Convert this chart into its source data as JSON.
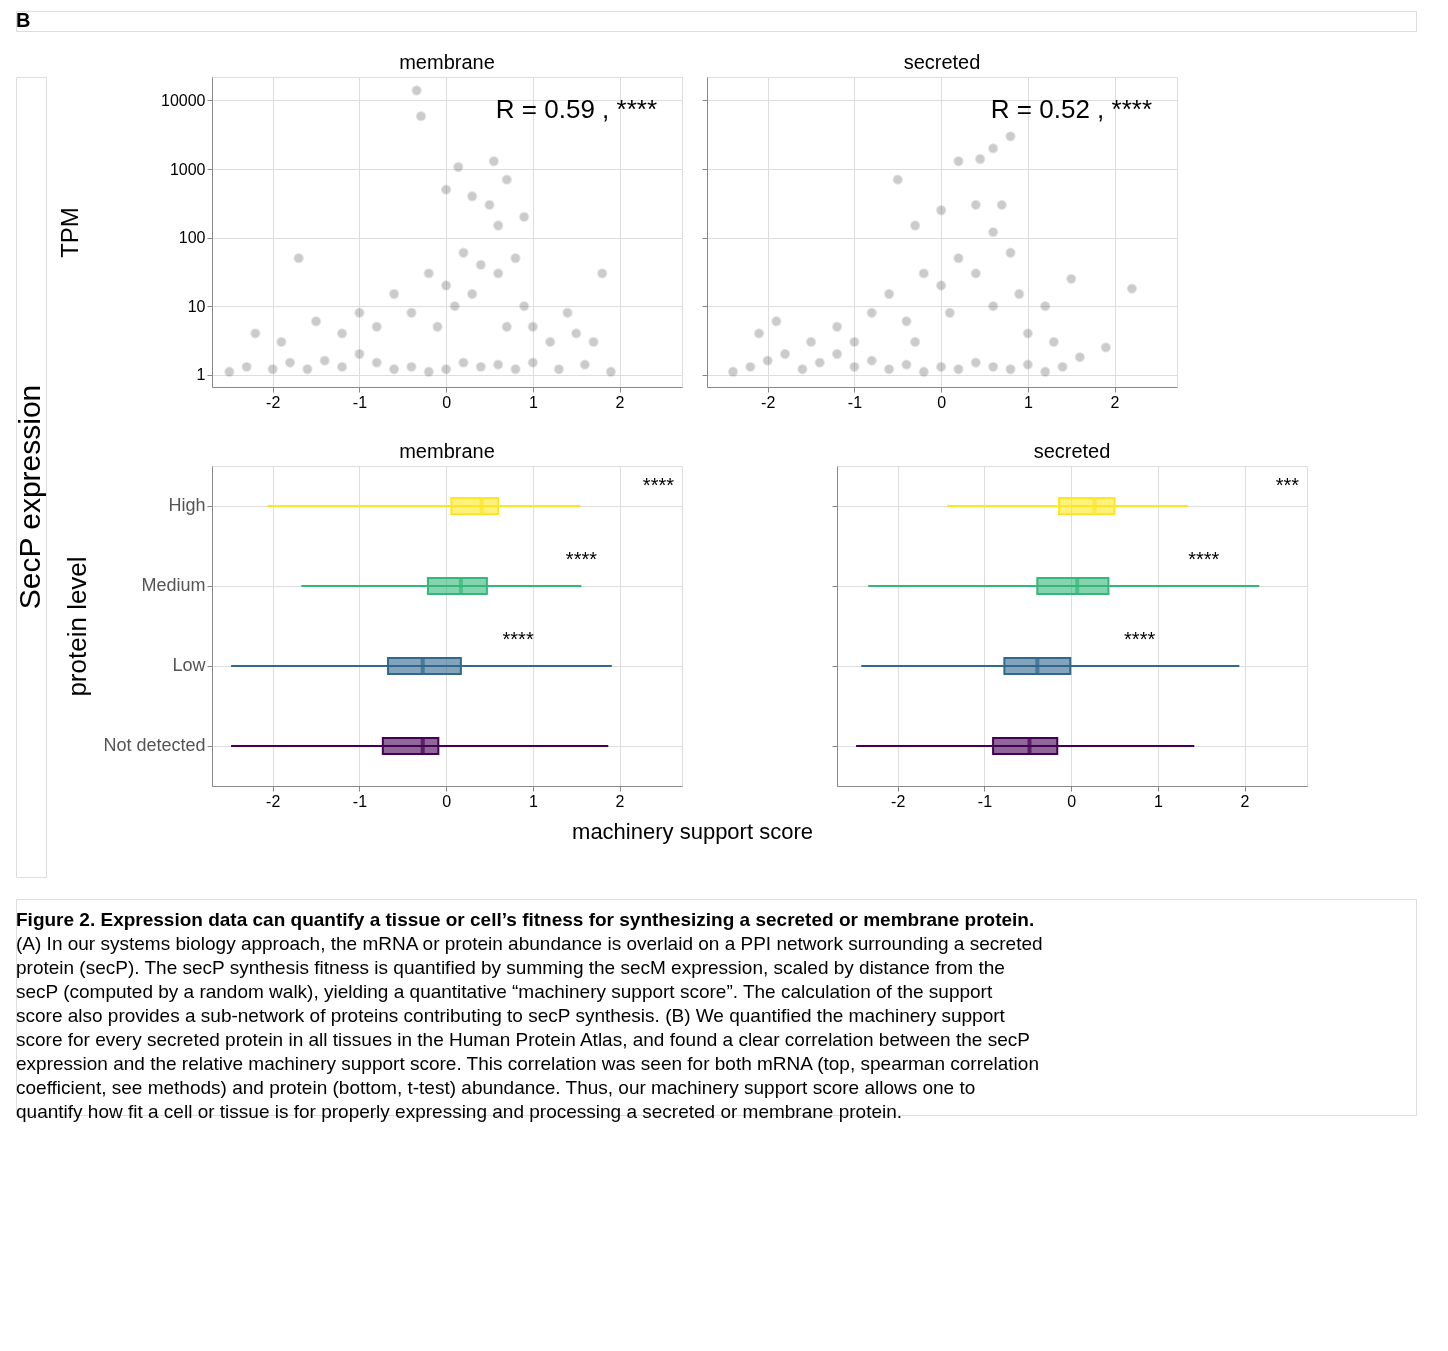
{
  "chart_data": [
    {
      "type": "scatter",
      "title": "membrane",
      "ylabel": "TPM",
      "log": "y",
      "grid": true,
      "marker": "circle",
      "annotations": [
        "B",
        "SecP expression",
        "R = 0.59 , ****"
      ],
      "xlim": [
        -2.7,
        2.72
      ],
      "xticks": [
        -2,
        -1,
        0,
        1,
        2
      ],
      "ylim": [
        0.66,
        22000
      ],
      "yticks": [
        1,
        10,
        100,
        1000,
        10000
      ],
      "series": [
        {
          "color": "#555555",
          "x": [
            -2.5,
            -2.3,
            -2.0,
            -1.8,
            -1.6,
            -1.4,
            -1.2,
            -1.0,
            -0.8,
            -0.6,
            -0.4,
            -0.2,
            0,
            0.2,
            0.4,
            0.6,
            0.8,
            1.0,
            1.3,
            1.6,
            1.9,
            -2.2,
            -1.9,
            -1.5,
            -1.2,
            -1.0,
            -0.8,
            -0.6,
            -0.4,
            -0.2,
            0,
            0.2,
            0.4,
            0.6,
            0.5,
            0.3,
            0.8,
            0.9,
            1.0,
            1.2,
            1.4,
            1.5,
            1.8,
            1.7,
            -1.7,
            0.1,
            0.3,
            -0.1,
            0.6,
            0.7,
            0.0,
            0.55,
            0.14,
            -0.29,
            -0.34,
            0.9,
            0.7
          ],
          "values": [
            1.1,
            1.3,
            1.2,
            1.5,
            1.2,
            1.6,
            1.3,
            2,
            1.5,
            1.2,
            1.3,
            1.1,
            1.2,
            1.5,
            1.3,
            1.4,
            1.2,
            1.5,
            1.2,
            1.4,
            1.1,
            4,
            3,
            6,
            4,
            8,
            5,
            15,
            8,
            30,
            20,
            60,
            40,
            150,
            300,
            400,
            50,
            10,
            5,
            3,
            8,
            4,
            30,
            3,
            50,
            10,
            15,
            5,
            30,
            5,
            500,
            1300,
            1070,
            5900,
            14000,
            200,
            700
          ]
        }
      ]
    },
    {
      "type": "scatter",
      "title": "secreted",
      "log": "y",
      "grid": true,
      "marker": "circle",
      "tick_labels": "x",
      "annotations": [
        "R = 0.52 , ****"
      ],
      "xlim": [
        -2.7,
        2.72
      ],
      "xticks": [
        -2,
        -1,
        0,
        1,
        2
      ],
      "ylim": [
        0.66,
        22000
      ],
      "yticks": [
        1,
        10,
        100,
        1000,
        10000
      ],
      "series": [
        {
          "color": "#555555",
          "x": [
            -2.4,
            -2.2,
            -2.0,
            -1.8,
            -1.6,
            -1.4,
            -1.2,
            -1.0,
            -0.8,
            -0.6,
            -0.4,
            -0.2,
            0,
            0.2,
            0.4,
            0.6,
            0.8,
            1.0,
            1.2,
            1.4,
            1.6,
            1.9,
            -2.1,
            -1.9,
            -1.5,
            -1.2,
            -1.0,
            -0.8,
            -0.6,
            -0.4,
            -0.2,
            0,
            0.2,
            0.4,
            0.6,
            0.4,
            0.0,
            0.8,
            0.9,
            1.0,
            1.2,
            1.3,
            1.5,
            2.2,
            -0.5,
            0.2,
            0.45,
            0.8,
            0.6,
            -0.3,
            0.1,
            -0.3,
            0.6,
            0.7
          ],
          "values": [
            1.1,
            1.3,
            1.6,
            2,
            1.2,
            1.5,
            2,
            1.3,
            1.6,
            1.2,
            1.4,
            1.1,
            1.3,
            1.2,
            1.5,
            1.3,
            1.2,
            1.4,
            1.1,
            1.3,
            1.8,
            2.5,
            4,
            6,
            3,
            5,
            3,
            8,
            15,
            6,
            30,
            20,
            50,
            30,
            120,
            300,
            250,
            60,
            15,
            4,
            10,
            3,
            25,
            18,
            700,
            1300,
            1400,
            3000,
            2000,
            150,
            8,
            3,
            10,
            300
          ]
        }
      ]
    },
    {
      "type": "box",
      "title": "membrane",
      "ylabel": "protein level",
      "xlabel": "machinery support score",
      "orientation": "horizontal",
      "grid": true,
      "xlim": [
        -2.7,
        2.72
      ],
      "xticks": [
        -2,
        -1,
        0,
        1,
        2
      ],
      "categories": [
        "High",
        "Medium",
        "Low",
        "Not detected"
      ],
      "colors": [
        "#fde725",
        "#35b779",
        "#31688e",
        "#440154"
      ],
      "boxes": [
        {
          "low": -2.06,
          "q1": 0.06,
          "median": 0.41,
          "q3": 0.6,
          "high": 1.55
        },
        {
          "low": -1.67,
          "q1": -0.21,
          "median": 0.17,
          "q3": 0.47,
          "high": 1.56
        },
        {
          "low": -2.48,
          "q1": -0.67,
          "median": -0.27,
          "q3": 0.17,
          "high": 1.91
        },
        {
          "low": -2.48,
          "q1": -0.73,
          "median": -0.27,
          "q3": -0.09,
          "high": 1.87
        }
      ],
      "annotations": [
        "****",
        {
          "text": "****",
          "x": 1.56,
          "y": "Medium"
        },
        {
          "text": "****",
          "x": 0.83,
          "y": "Low"
        }
      ]
    },
    {
      "type": "box",
      "title": "secreted",
      "orientation": "horizontal",
      "grid": true,
      "tick_labels": "x",
      "xlim": [
        -2.7,
        2.72
      ],
      "xticks": [
        -2,
        -1,
        0,
        1,
        2
      ],
      "categories": [
        "High",
        "Medium",
        "Low",
        "Not detected"
      ],
      "colors": [
        "#fde725",
        "#35b779",
        "#31688e",
        "#440154"
      ],
      "boxes": [
        {
          "low": -1.43,
          "q1": -0.14,
          "median": 0.27,
          "q3": 0.5,
          "high": 1.35
        },
        {
          "low": -2.34,
          "q1": -0.39,
          "median": 0.07,
          "q3": 0.43,
          "high": 2.17
        },
        {
          "low": -2.42,
          "q1": -0.77,
          "median": -0.39,
          "q3": -0.01,
          "high": 1.94
        },
        {
          "low": -2.48,
          "q1": -0.9,
          "median": -0.48,
          "q3": -0.16,
          "high": 1.42
        }
      ],
      "annotations": [
        "***",
        {
          "text": "****",
          "x": 1.53,
          "y": "Medium"
        },
        {
          "text": "****",
          "x": 0.79,
          "y": "Low"
        },
        "Figure 2. Expression data can quantify a tissue or cell’s fitness for synthesizing a secreted or membrane protein.",
        "(A) In our systems biology approach, the mRNA or protein abundance is overlaid on a PPI network surrounding a secreted",
        "protein (secP). The secP synthesis fitness is quantified by summing the secM expression, scaled by distance from the",
        "secP (computed by a random walk), yielding a quantitative “machinery support score”. The calculation of the support",
        "score also provides a sub-network of proteins contributing to secP synthesis. (B) We quantified the machinery support",
        "score for every secreted protein in all tissues in the Human Protein Atlas, and found a clear correlation between the secP",
        "expression and the relative machinery support score. This correlation was seen for both mRNA (top, spearman correlation",
        "coefficient, see methods) and protein (bottom, t-test) abundance. Thus, our machinery support score allows one to",
        "quantify how fit a cell or tissue is for properly expressing and processing a secreted or membrane protein."
      ]
    }
  ]
}
